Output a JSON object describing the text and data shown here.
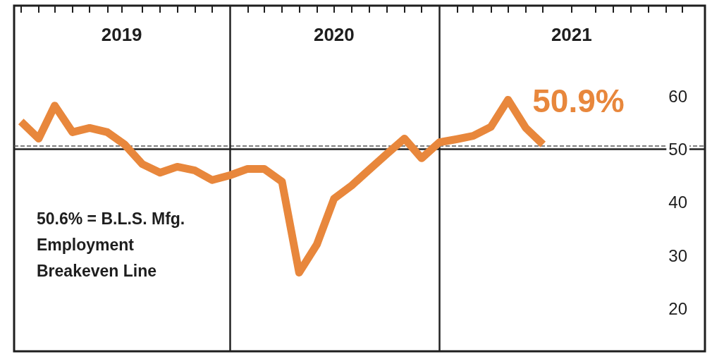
{
  "chart_data": {
    "type": "line",
    "x": [
      "2019-01",
      "2019-02",
      "2019-03",
      "2019-04",
      "2019-05",
      "2019-06",
      "2019-07",
      "2019-08",
      "2019-09",
      "2019-10",
      "2019-11",
      "2019-12",
      "2020-01",
      "2020-02",
      "2020-03",
      "2020-04",
      "2020-05",
      "2020-06",
      "2020-07",
      "2020-08",
      "2020-09",
      "2020-10",
      "2020-11",
      "2020-12",
      "2021-01",
      "2021-02",
      "2021-03",
      "2021-04",
      "2021-05",
      "2021-06",
      "2021-07"
    ],
    "series": [
      {
        "color": "#e8873c",
        "values": [
          55.2,
          52.0,
          58.2,
          53.2,
          54.0,
          53.2,
          50.9,
          47.2,
          45.6,
          46.7,
          46.0,
          44.2,
          45.1,
          46.3,
          46.3,
          43.9,
          26.8,
          32.1,
          40.7,
          43.2,
          46.2,
          49.1,
          52.0,
          48.3,
          51.3,
          51.9,
          52.5,
          54.2,
          59.3,
          54.0,
          50.9
        ]
      }
    ],
    "xlim": [
      "2018-12-20",
      "2022-04-10"
    ],
    "xticks": [
      {
        "value": "2019-01",
        "label": null
      },
      {
        "value": "2019-02",
        "label": null
      },
      {
        "value": "2019-03",
        "label": null
      },
      {
        "value": "2019-04",
        "label": null
      },
      {
        "value": "2019-05",
        "label": null
      },
      {
        "value": "2019-06",
        "label": null
      },
      {
        "value": "2019-06-26",
        "label": "2019"
      },
      {
        "value": "2019-08",
        "label": null
      },
      {
        "value": "2019-09",
        "label": null
      },
      {
        "value": "2019-10",
        "label": null
      },
      {
        "value": "2019-11",
        "label": null
      },
      {
        "value": "2019-12",
        "label": null
      },
      {
        "value": "2020-02",
        "label": null
      },
      {
        "value": "2020-03",
        "label": null
      },
      {
        "value": "2020-04",
        "label": null
      },
      {
        "value": "2020-05",
        "label": null
      },
      {
        "value": "2020-06",
        "label": null
      },
      {
        "value": "2020-07",
        "label": "2020"
      },
      {
        "value": "2020-08",
        "label": null
      },
      {
        "value": "2020-09",
        "label": null
      },
      {
        "value": "2020-10",
        "label": null
      },
      {
        "value": "2020-11",
        "label": null
      },
      {
        "value": "2020-12",
        "label": null
      },
      {
        "value": "2021-02",
        "label": null
      },
      {
        "value": "2021-03",
        "label": null
      },
      {
        "value": "2021-04",
        "label": null
      },
      {
        "value": "2021-05",
        "label": null
      },
      {
        "value": "2021-06",
        "label": null
      },
      {
        "value": "2021-07",
        "label": null
      },
      {
        "value": "2021-08-20",
        "label": "2021"
      },
      {
        "value": "2021-10",
        "label": null
      },
      {
        "value": "2021-11",
        "label": null
      },
      {
        "value": "2021-12",
        "label": null
      },
      {
        "value": "2022-01",
        "label": null
      },
      {
        "value": "2022-02",
        "label": null
      },
      {
        "value": "2022-03",
        "label": null
      }
    ],
    "ylim": [
      12,
      77
    ],
    "yticks": [
      20,
      30,
      40,
      50,
      60
    ],
    "ref_lines": [
      {
        "axis": "y",
        "value": 50,
        "color": "#222222",
        "line_style": "solid"
      },
      {
        "axis": "y",
        "value": 50.6,
        "color": "#555555",
        "line_style": "dashed"
      },
      {
        "axis": "x",
        "value": "2020-01",
        "color": "#222222",
        "line_style": "solid"
      },
      {
        "axis": "x",
        "value": "2021-01",
        "color": "#222222",
        "line_style": "solid"
      }
    ],
    "annotations": [
      {
        "text": "50.9%",
        "x": "2021-07",
        "y": 50.9
      },
      "50.6% = B.L.S. Mfg. Employment Breakeven Line"
    ],
    "grid": false,
    "marker": "none",
    "line_style": "solid"
  }
}
